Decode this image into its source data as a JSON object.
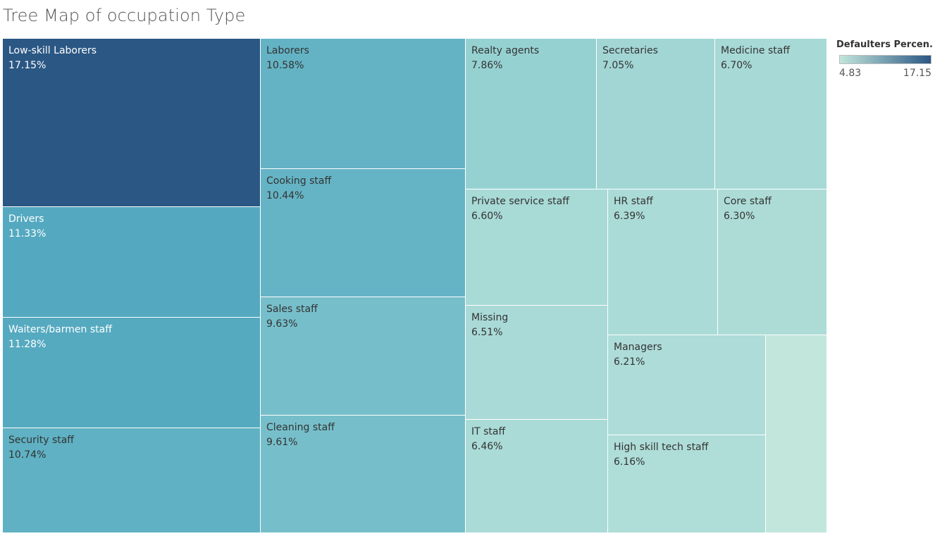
{
  "title": "Tree Map of occupation Type",
  "legend": {
    "title": "Defaulters Percen..",
    "min_label": "4.83",
    "max_label": "17.15",
    "min": 4.83,
    "max": 17.15,
    "min_color": "#c2e6dc",
    "max_color": "#2b5784"
  },
  "chart_data": {
    "type": "treemap",
    "measure": "Defaulters Percentage",
    "color_range": [
      4.83,
      17.15
    ],
    "items": [
      {
        "label": "Low-skill Laborers",
        "value": 17.15,
        "display": "17.15%"
      },
      {
        "label": "Drivers",
        "value": 11.33,
        "display": "11.33%"
      },
      {
        "label": "Waiters/barmen staff",
        "value": 11.28,
        "display": "11.28%"
      },
      {
        "label": "Security staff",
        "value": 10.74,
        "display": "10.74%"
      },
      {
        "label": "Laborers",
        "value": 10.58,
        "display": "10.58%"
      },
      {
        "label": "Cooking staff",
        "value": 10.44,
        "display": "10.44%"
      },
      {
        "label": "Sales staff",
        "value": 9.63,
        "display": "9.63%"
      },
      {
        "label": "Cleaning staff",
        "value": 9.61,
        "display": "9.61%"
      },
      {
        "label": "Realty agents",
        "value": 7.86,
        "display": "7.86%"
      },
      {
        "label": "Secretaries",
        "value": 7.05,
        "display": "7.05%"
      },
      {
        "label": "Medicine staff",
        "value": 6.7,
        "display": "6.70%"
      },
      {
        "label": "Private service staff",
        "value": 6.6,
        "display": "6.60%"
      },
      {
        "label": "HR staff",
        "value": 6.39,
        "display": "6.39%"
      },
      {
        "label": "Core staff",
        "value": 6.3,
        "display": "6.30%"
      },
      {
        "label": "Missing",
        "value": 6.51,
        "display": "6.51%"
      },
      {
        "label": "Managers",
        "value": 6.21,
        "display": "6.21%"
      },
      {
        "label": "IT staff",
        "value": 6.46,
        "display": "6.46%"
      },
      {
        "label": "High skill tech staff",
        "value": 6.16,
        "display": "6.16%"
      },
      {
        "label": "",
        "value": 4.83,
        "display": ""
      }
    ]
  }
}
